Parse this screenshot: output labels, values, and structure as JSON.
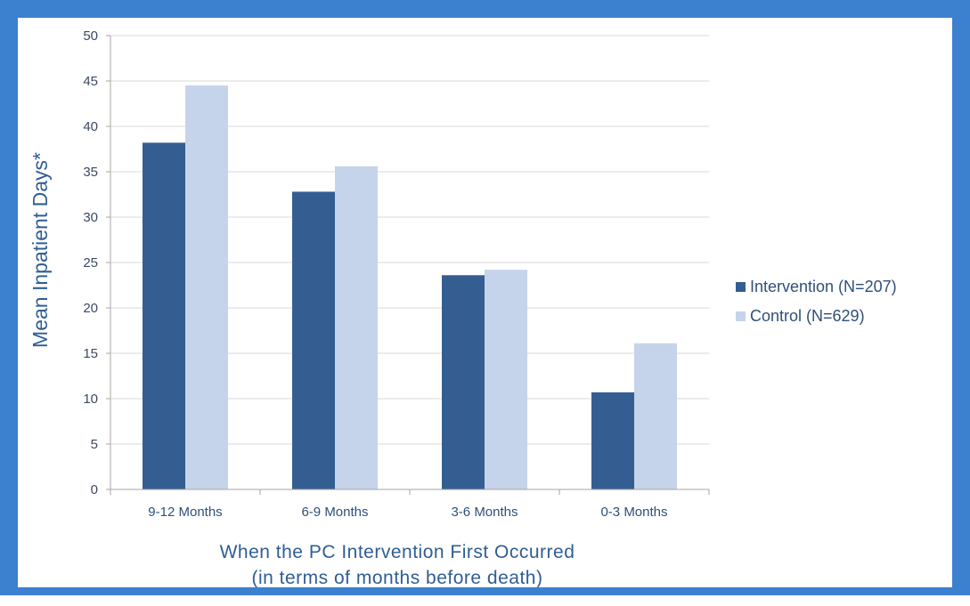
{
  "chart_data": {
    "type": "bar",
    "categories": [
      "9-12 Months",
      "6-9 Months",
      "3-6 Months",
      "0-3 Months"
    ],
    "series": [
      {
        "name": "Intervention (N=207)",
        "values": [
          38.2,
          32.8,
          23.6,
          10.7
        ],
        "color": "#345e91"
      },
      {
        "name": "Control (N=629)",
        "values": [
          44.5,
          35.6,
          24.2,
          16.1
        ],
        "color": "#c5d4ea"
      }
    ],
    "ylabel": "Mean Inpatient Days*",
    "xlabel": "When the PC Intervention First Occurred",
    "xlabel_line2": "(in terms of months before death)",
    "ylim": [
      0,
      50
    ],
    "yticks": [
      0,
      5,
      10,
      15,
      20,
      25,
      30,
      35,
      40,
      45,
      50
    ],
    "grid": true,
    "legend_position": "right"
  },
  "colors": {
    "border": "#3c80d0",
    "gridline": "#d9d9d9",
    "axis": "#a6a6a6"
  }
}
